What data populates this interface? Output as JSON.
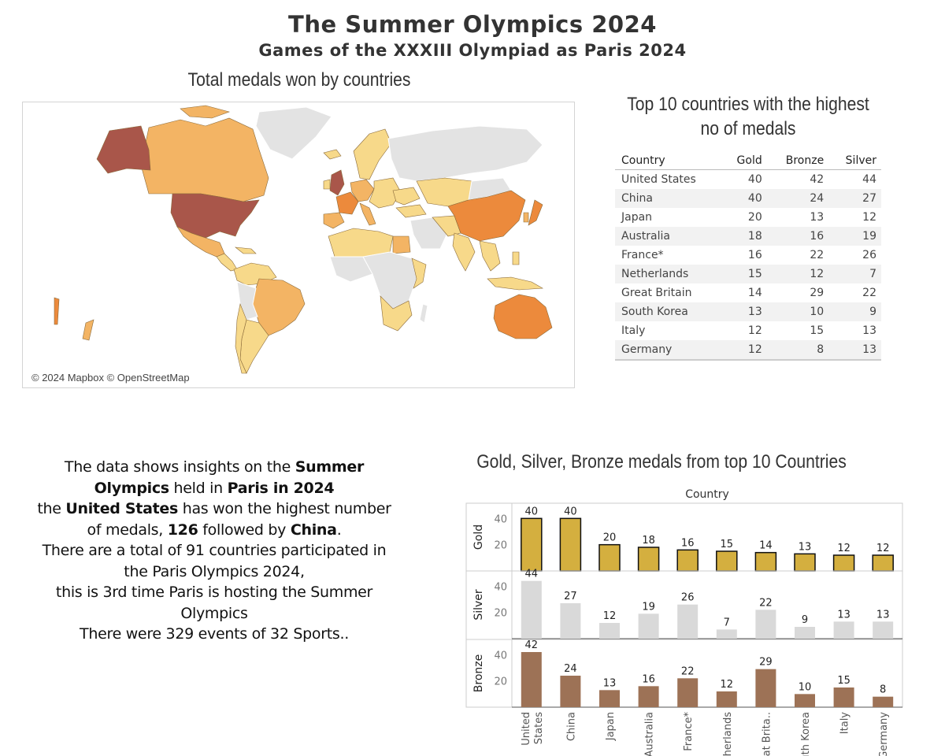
{
  "header": {
    "title": "The Summer Olympics 2024",
    "subtitle": "Games of the XXXIII Olympiad as Paris 2024"
  },
  "map": {
    "title": "Total medals won by countries",
    "credit": "© 2024 Mapbox © OpenStreetMap",
    "colors": {
      "land": "#e3e3e3",
      "low": "#f7d98a",
      "mid": "#f3b464",
      "high": "#ec8a3c",
      "top": "#a9564a"
    }
  },
  "table": {
    "title_line1": "Top 10 countries with the highest",
    "title_line2": "no of medals",
    "columns": [
      "Country",
      "Gold",
      "Bronze",
      "Silver"
    ],
    "rows": [
      {
        "country": "United States",
        "gold": "40",
        "bronze": "42",
        "silver": "44"
      },
      {
        "country": "China",
        "gold": "40",
        "bronze": "24",
        "silver": "27"
      },
      {
        "country": "Japan",
        "gold": "20",
        "bronze": "13",
        "silver": "12"
      },
      {
        "country": "Australia",
        "gold": "18",
        "bronze": "16",
        "silver": "19"
      },
      {
        "country": "France*",
        "gold": "16",
        "bronze": "22",
        "silver": "26"
      },
      {
        "country": "Netherlands",
        "gold": "15",
        "bronze": "12",
        "silver": "7"
      },
      {
        "country": "Great Britain",
        "gold": "14",
        "bronze": "29",
        "silver": "22"
      },
      {
        "country": "South Korea",
        "gold": "13",
        "bronze": "10",
        "silver": "9"
      },
      {
        "country": "Italy",
        "gold": "12",
        "bronze": "15",
        "silver": "13"
      },
      {
        "country": "Germany",
        "gold": "12",
        "bronze": "8",
        "silver": "13"
      }
    ]
  },
  "summary": {
    "s1": "The data shows insights on the ",
    "s2": "Summer Olympics",
    "s3": " held in ",
    "s4": "Paris in 2024",
    "s5": "the ",
    "s6": "United States",
    "s7": " has won the highest number of medals, ",
    "s8": "126",
    "s9": " followed by ",
    "s10": "China",
    "s11": ".",
    "s12": "There are a total of 91 countries participated in the Paris Olympics 2024,",
    "s13": "this is 3rd time Paris is hosting the Summer Olympics",
    "s14": "There were 329 events of 32 Sports.."
  },
  "chart_data": {
    "type": "bar",
    "title": "Gold, Silver, Bronze medals from top 10 Countries",
    "xlabel": "Country",
    "categories": [
      "United States",
      "China",
      "Japan",
      "Australia",
      "France*",
      "Netherlands",
      "Great Brita..",
      "South Korea",
      "Italy",
      "Germany"
    ],
    "category_display": [
      [
        "United",
        "States"
      ],
      [
        "China"
      ],
      [
        "Japan"
      ],
      [
        "Australia"
      ],
      [
        "France*"
      ],
      [
        "Netherlands"
      ],
      [
        "Great Brita.."
      ],
      [
        "South Korea"
      ],
      [
        "Italy"
      ],
      [
        "Germany"
      ]
    ],
    "series": [
      {
        "name": "Gold",
        "values": [
          40,
          40,
          20,
          18,
          16,
          15,
          14,
          13,
          12,
          12
        ],
        "color": "#d4af3f",
        "stroke": "#111111"
      },
      {
        "name": "Silver",
        "values": [
          44,
          27,
          12,
          19,
          26,
          7,
          22,
          9,
          13,
          13
        ],
        "color": "#d9d9d9",
        "stroke": "none"
      },
      {
        "name": "Bronze",
        "values": [
          42,
          24,
          13,
          16,
          22,
          12,
          29,
          10,
          15,
          8
        ],
        "color": "#9d7256",
        "stroke": "none"
      }
    ],
    "yticks": [
      20,
      40
    ],
    "ylim": [
      0,
      48
    ],
    "grid": false
  }
}
